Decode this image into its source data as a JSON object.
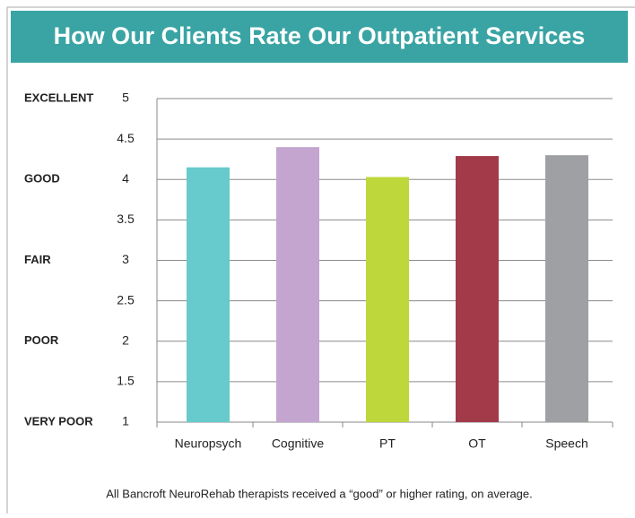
{
  "chart_data": {
    "type": "bar",
    "title": "How Our Clients Rate Our Outpatient Services",
    "categories": [
      "Neuropsych",
      "Cognitive",
      "PT",
      "OT",
      "Speech"
    ],
    "values": [
      4.15,
      4.4,
      4.03,
      4.29,
      4.3
    ],
    "colors": [
      "#67cacc",
      "#c3a5d0",
      "#bed73b",
      "#a23a4a",
      "#9fa0a4"
    ],
    "ylim": [
      1,
      5
    ],
    "yticks": [
      1,
      1.5,
      2,
      2.5,
      3,
      3.5,
      4,
      4.5,
      5
    ],
    "rating_labels": [
      {
        "value": 5,
        "label": "EXCELLENT"
      },
      {
        "value": 4,
        "label": "GOOD"
      },
      {
        "value": 3,
        "label": "FAIR"
      },
      {
        "value": 2,
        "label": "POOR"
      },
      {
        "value": 1,
        "label": "VERY POOR"
      }
    ],
    "grid": true,
    "caption": "All Bancroft NeuroRehab therapists received a “good” or higher rating, on average."
  }
}
